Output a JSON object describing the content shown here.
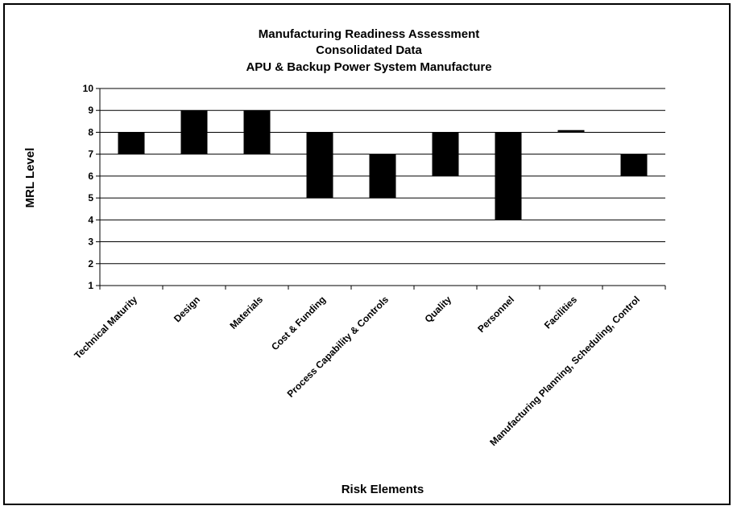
{
  "chart_data": {
    "type": "bar",
    "title_lines": [
      "Manufacturing Readiness Assessment",
      "Consolidated Data",
      "APU & Backup Power System Manufacture"
    ],
    "xlabel": "Risk Elements",
    "ylabel": "MRL Level",
    "ylim": [
      1,
      10
    ],
    "yticks": [
      "1",
      "2",
      "3",
      "4",
      "5",
      "6",
      "7",
      "8",
      "9",
      "10"
    ],
    "grid": true,
    "legend": "none",
    "bar_color": "#000000",
    "categories": [
      "Technical Maturity",
      "Design",
      "Materials",
      "Cost & Funding",
      "Process Capability & Controls",
      "Quality",
      "Personnel",
      "Facilities",
      "Manufacturing Planning, Scheduling, Control"
    ],
    "series": [
      {
        "low": [
          7,
          7,
          7,
          5,
          5,
          6,
          4,
          8,
          6
        ],
        "high": [
          8,
          9,
          9,
          8,
          7,
          8,
          8,
          8.1,
          7
        ]
      }
    ]
  }
}
